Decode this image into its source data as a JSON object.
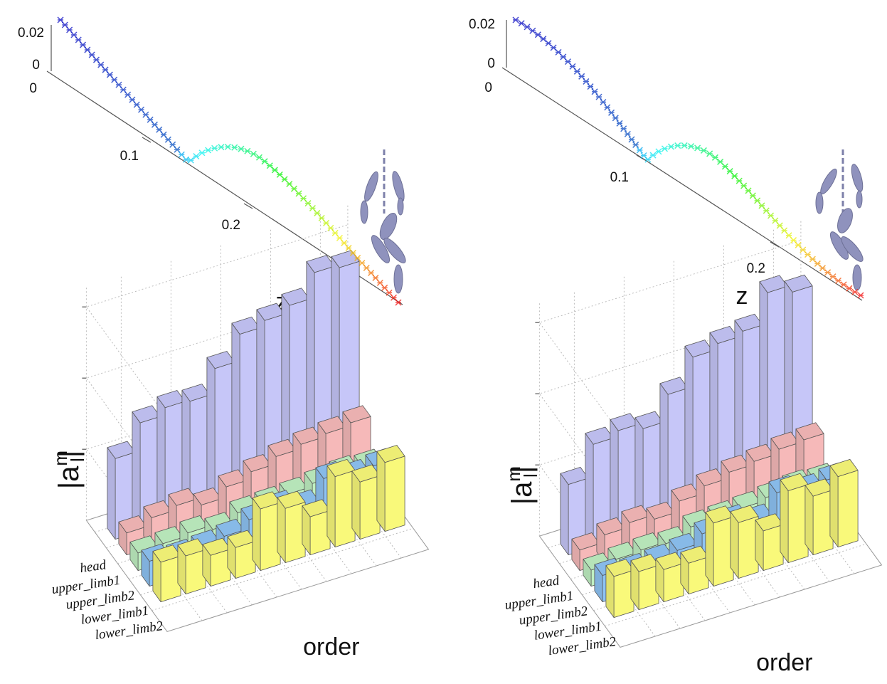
{
  "trajectory_panels": [
    {
      "ticks": [
        "0.02",
        "0",
        "0",
        "0.1",
        "0.2"
      ],
      "axis_label": "z"
    },
    {
      "ticks": [
        "0.02",
        "0",
        "0",
        "0.1",
        "0.2"
      ],
      "axis_label": "z"
    }
  ],
  "chart_data": [
    {
      "type": "bar3d",
      "categories": [
        null,
        null,
        null,
        null,
        null,
        null,
        null,
        null,
        null,
        null
      ],
      "xlabel": "order",
      "ylabel": {
        "prefix": "|a",
        "sup": "m",
        "sub": "l",
        "suffix": "|"
      },
      "ylim": [
        0,
        16
      ],
      "series": [
        {
          "name": "head",
          "color": "#c6c6f8",
          "values": [
            5.5,
            7.4,
            7.9,
            7.8,
            9.5,
            11.3,
            11.7,
            12.2,
            13.9,
            13.7
          ]
        },
        {
          "name": "upper_limb1",
          "color": "#f6b9b9",
          "values": [
            1.5,
            2.0,
            2.3,
            1.8,
            2.5,
            3.0,
            3.5,
            3.8,
            4.0,
            4.2
          ]
        },
        {
          "name": "upper_limb2",
          "color": "#c0f0c2",
          "values": [
            1.2,
            1.3,
            1.5,
            1.2,
            1.8,
            1.9,
            2.0,
            2.2,
            2.4,
            2.3
          ]
        },
        {
          "name": "lower_limb1",
          "color": "#8ec4f4",
          "values": [
            1.7,
            1.5,
            1.6,
            1.8,
            2.4,
            2.7,
            2.2,
            3.6,
            3.2,
            3.4
          ]
        },
        {
          "name": "lower_limb2",
          "color": "#f9f97a",
          "values": [
            2.7,
            2.6,
            2.1,
            2.1,
            4.2,
            3.7,
            2.6,
            4.8,
            3.9,
            4.7
          ]
        }
      ]
    },
    {
      "type": "bar3d",
      "categories": [
        null,
        null,
        null,
        null,
        null,
        null,
        null,
        null,
        null,
        null
      ],
      "xlabel": "order",
      "ylabel": {
        "prefix": "|a",
        "sup": "m",
        "sub": "l",
        "suffix": "|"
      },
      "ylim": [
        0,
        16
      ],
      "series": [
        {
          "name": "head",
          "color": "#c6c6f8",
          "values": [
            4.8,
            7.0,
            7.4,
            7.0,
            8.8,
            10.8,
            11.2,
            11.5,
            13.6,
            13.1
          ]
        },
        {
          "name": "upper_limb1",
          "color": "#f6b9b9",
          "values": [
            1.4,
            1.9,
            2.2,
            1.9,
            2.6,
            3.1,
            3.5,
            3.7,
            4.0,
            4.1
          ]
        },
        {
          "name": "upper_limb2",
          "color": "#c0f0c2",
          "values": [
            1.1,
            1.3,
            1.4,
            1.3,
            1.9,
            2.0,
            2.1,
            2.3,
            2.5,
            2.4
          ]
        },
        {
          "name": "lower_limb1",
          "color": "#8ec4f4",
          "values": [
            1.8,
            1.6,
            1.7,
            1.9,
            2.5,
            2.8,
            2.3,
            3.7,
            3.3,
            3.5
          ]
        },
        {
          "name": "lower_limb2",
          "color": "#f9f97a",
          "values": [
            2.8,
            2.6,
            2.2,
            2.1,
            4.3,
            3.8,
            2.7,
            4.9,
            4.0,
            4.8
          ]
        }
      ]
    }
  ]
}
